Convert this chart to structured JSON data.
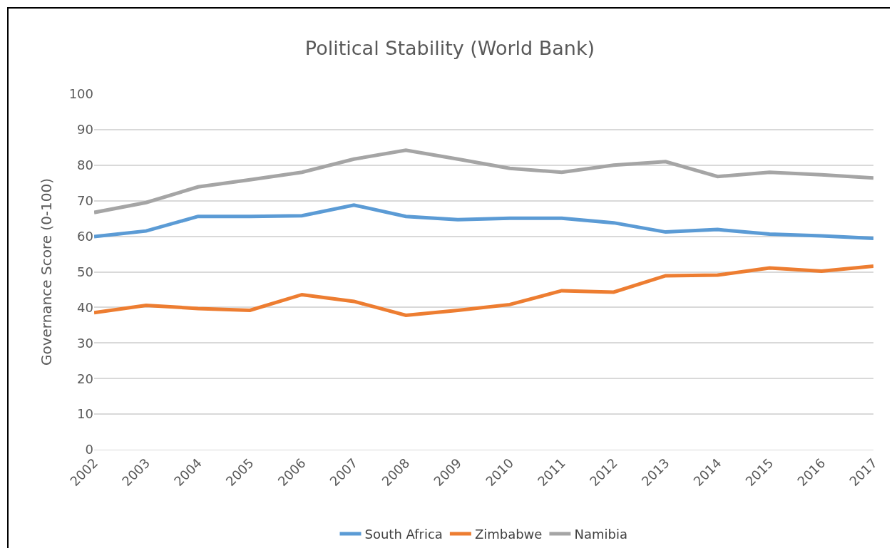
{
  "chart_data": {
    "type": "line",
    "title": "Political Stability (World Bank)",
    "ylabel": "Governance Score (0-100)",
    "categories": [
      "2002",
      "2003",
      "2004",
      "2005",
      "2006",
      "2007",
      "2008",
      "2009",
      "2010",
      "2011",
      "2012",
      "2013",
      "2014",
      "2015",
      "2016",
      "2017"
    ],
    "series": [
      {
        "name": "South Africa",
        "color": "#5b9bd5",
        "values": [
          59.9,
          61.5,
          65.6,
          65.6,
          65.8,
          68.8,
          65.6,
          64.7,
          65.1,
          65.1,
          63.8,
          61.2,
          61.9,
          60.6,
          60.1,
          59.4
        ]
      },
      {
        "name": "Zimbabwe",
        "color": "#ed7d31",
        "values": [
          38.5,
          40.6,
          39.7,
          39.2,
          43.6,
          41.7,
          37.8,
          39.2,
          40.8,
          44.7,
          44.3,
          48.9,
          49.1,
          51.1,
          50.2,
          51.6
        ]
      },
      {
        "name": "Namibia",
        "color": "#a5a5a5",
        "values": [
          66.7,
          69.5,
          73.9,
          75.9,
          78.0,
          81.7,
          84.2,
          81.7,
          79.1,
          78.0,
          80.0,
          81.0,
          76.8,
          78.0,
          77.3,
          76.4
        ]
      }
    ],
    "ylim": [
      0,
      100
    ],
    "yticks": [
      0,
      10,
      20,
      30,
      40,
      50,
      60,
      70,
      80,
      90,
      100
    ],
    "grid": "y",
    "legend": "bottom",
    "marker": "none",
    "line_style": "solid"
  }
}
